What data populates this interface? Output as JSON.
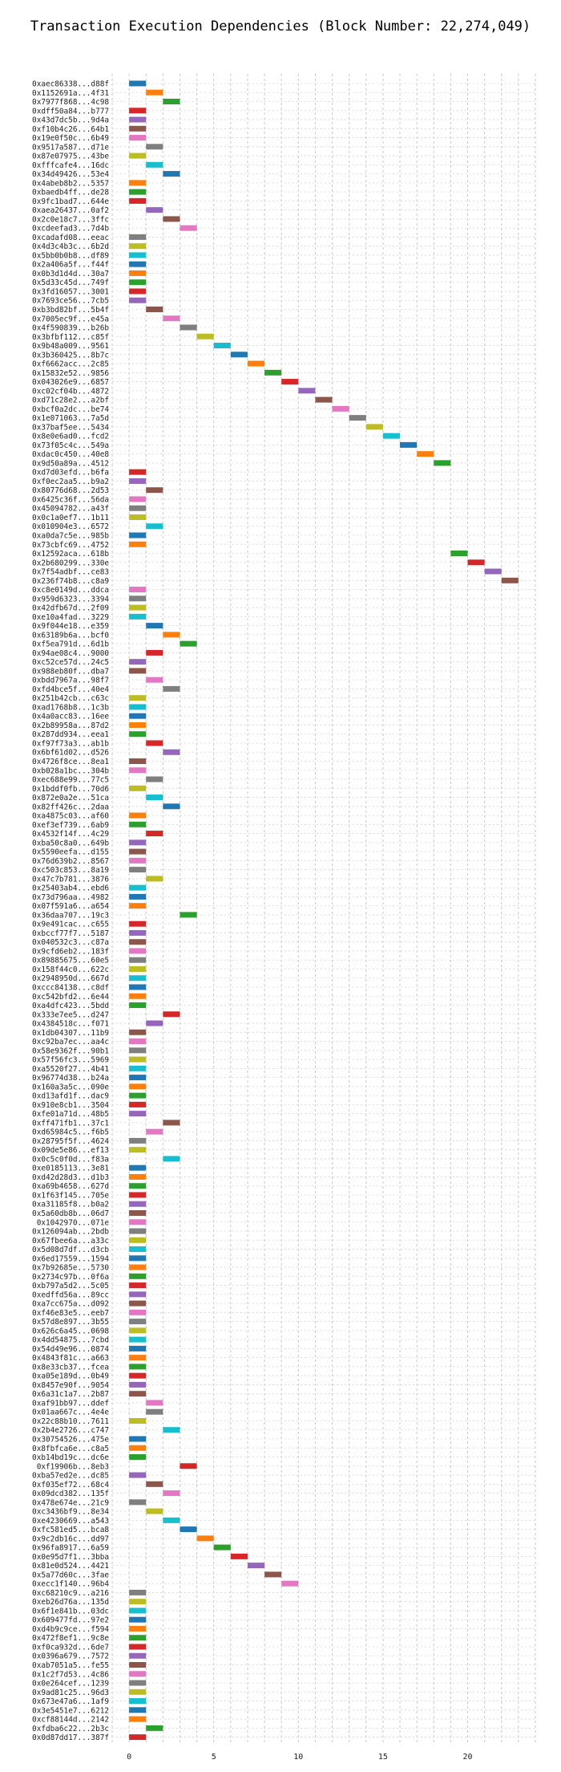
{
  "chart_data": {
    "type": "bar",
    "orientation": "horizontal-gantt",
    "title": "Transaction Execution Dependencies (Block Number: 22,274,049)",
    "xlabel": "",
    "ylabel": "",
    "xlim": [
      -1,
      24
    ],
    "xticks": [
      0,
      5,
      10,
      15,
      20
    ],
    "grid": true,
    "colors": [
      "#1f77b4",
      "#ff7f0e",
      "#2ca02c",
      "#d62728",
      "#9467bd",
      "#8c564b",
      "#e377c2",
      "#7f7f7f",
      "#bcbd22",
      "#17becf"
    ],
    "categories": [
      "0xaec86338...d88f",
      "0x1152691a...4f31",
      "0x7977f868...4c98",
      "0xdff50a84...b777",
      "0x43d7dc5b...9d4a",
      "0xf10b4c26...64b1",
      "0x19e0f50c...6b49",
      "0x9517a587...d71e",
      "0x87e07975...43be",
      "0xfffcafe4...16dc",
      "0x34d49426...53e4",
      "0x4abeb8b2...5357",
      "0xbaedb4ff...de28",
      "0x9fc1bad7...644e",
      "0xaea26437...0af2",
      "0x2c0e18c7...3ffc",
      "0xcdeefad3...7d4b",
      "0xcadafd08...eeac",
      "0x4d3c4b3c...6b2d",
      "0x5bb0b0b8...df89",
      "0x2a406a5f...f44f",
      "0x0b3d1d4d...30a7",
      "0x5d33c45d...749f",
      "0x3fd16057...3001",
      "0x7693ce56...7cb5",
      "0xb3bd82bf...5b4f",
      "0x7005ec9f...e45a",
      "0x4f590839...b26b",
      "0x3bfbf112...c85f",
      "0x9b48a009...9561",
      "0x3b360425...8b7c",
      "0xf6662acc...2c85",
      "0x15832e52...9856",
      "0x043026e9...6857",
      "0xc02cf04b...4872",
      "0xd71c28e2...a2bf",
      "0xbcf0a2dc...be74",
      "0x1e071063...7a5d",
      "0x37baf5ee...5434",
      "0x8e0e6ad0...fcd2",
      "0x73f05c4c...549a",
      "0xdac0c450...40e8",
      "0x9d50a89a...4512",
      "0xd7d03efd...b6fa",
      "0xf0ec2aa5...b9a2",
      "0x80776d68...2d53",
      "0x6425c36f...56da",
      "0x45094782...a43f",
      "0x0c1a0ef7...1b11",
      "0x010904e3...6572",
      "0xa0da7c5e...985b",
      "0x73cbfc69...4752",
      "0x12592aca...618b",
      "0x2b680299...330e",
      "0x7f54adbf...ce83",
      "0x236f74b8...c8a9",
      "0xc8e0149d...ddca",
      "0x959d6323...3394",
      "0x42dfb67d...2f09",
      "0xe10a4fad...3229",
      "0x9f044e18...e359",
      "0x63189b6a...bcf0",
      "0xf5ea791d...6d1b",
      "0x94ae08c4...9000",
      "0xc52ce57d...24c5",
      "0x988eb80f...dba7",
      "0xbdd7967a...98f7",
      "0xfd4bce5f...40e4",
      "0x251b42cb...c63c",
      "0xad1768b8...1c3b",
      "0x4a0acc83...16ee",
      "0x2b89958a...87d2",
      "0x287dd934...eea1",
      "0xf97f73a3...ab1b",
      "0x6bf61d02...d526",
      "0x4726f8ce...8ea1",
      "0xb028a1bc...304b",
      "0xec688e99...77c5",
      "0x1bddf0fb...70d6",
      "0x872e0a2e...51ca",
      "0x82ff426c...2daa",
      "0xa4875c03...af60",
      "0xef3ef739...6ab9",
      "0x4532f14f...4c29",
      "0xba50c8a0...649b",
      "0x5590eefa...d155",
      "0x76d639b2...8567",
      "0xc503c853...8a19",
      "0x47c7b781...3876",
      "0x25403ab4...ebd6",
      "0x73d796aa...4982",
      "0x07f591a6...a654",
      "0x36daa707...19c3",
      "0x9e491cac...c655",
      "0xbccf77f7...5187",
      "0x040532c3...c87a",
      "0x9cfd6eb2...183f",
      "0x89885675...60e5",
      "0x158f44c0...622c",
      "0x2948950d...667d",
      "0xccc84138...c8df",
      "0xc542bfd2...6e44",
      "0xa4dfc423...5bdd",
      "0x333e7ee5...d247",
      "0x4384518c...f071",
      "0x1db04307...11b9",
      "0xc92ba7ec...aa4c",
      "0x58e9362f...90b1",
      "0x57f56fc3...5969",
      "0xa5520f27...4b41",
      "0x96774d38...b24a",
      "0x160a3a5c...090e",
      "0xd13afd1f...dac9",
      "0x910e8cb1...3504",
      "0xfe01a71d...48b5",
      "0xff471fb1...37c1",
      "0xd65984c5...f6b5",
      "0x28795f5f...4624",
      "0x09de5e86...ef13",
      "0x0c5c0f0d...f83a",
      "0xe0185113...3e81",
      "0xd42d28d3...d1b3",
      "0xa69b4658...627d",
      "0x1f63f145...705e",
      "0xa31185f8...b0a2",
      "0x5a60db8b...06d7",
      "0x1042970...071e",
      "0x126094ab...2bdb",
      "0x67fbee6a...a33c",
      "0x5d08d7df...d3cb",
      "0x6ed17559...1594",
      "0x7b92685e...5730",
      "0x2734c97b...0f6a",
      "0xb797a5d2...5c05",
      "0xedffd56a...89cc",
      "0xa7cc675a...d092",
      "0xf46e83e5...eeb7",
      "0x57d8e897...3b55",
      "0x626c6a45...0698",
      "0x4dd54875...7cbd",
      "0x54d49e96...0874",
      "0x4843f81c...a663",
      "0x8e33cb37...fcea",
      "0xa05e189d...0b49",
      "0x8457e90f...9054",
      "0x6a31c1a7...2b87",
      "0xaf91bb97...ddef",
      "0x01aa667c...4e4e",
      "0x22c88b10...7611",
      "0x2b4e2726...c747",
      "0x30754526...475e",
      "0x8fbfca6e...c8a5",
      "0xb14bd19c...dc6e",
      "0xf19906b...8eb3",
      "0xba57ed2e...dc85",
      "0xf035ef72...68c4",
      "0x09dcd382...135f",
      "0x478e674e...21c9",
      "0xc3436bf9...8e34",
      "0xe4230669...a543",
      "0xfc581ed5...bca8",
      "0x9c2db16c...dd97",
      "0x96fa8917...6a59",
      "0x0e95d7f1...3bba",
      "0x81e0d524...4421",
      "0x5a77d60c...3fae",
      "0xecc1f140...96b4",
      "0xc68210c9...a216",
      "0xeb26d76a...135d",
      "0x6f1e841b...03dc",
      "0x609477fd...97e2",
      "0xd4b9c9ce...f594",
      "0x472f8ef1...9c8e",
      "0xf0ca932d...6de7",
      "0x0396a679...7572",
      "0xab7051a5...fe55",
      "0x1c2f7d53...4c86",
      "0x0e264cef...1239",
      "0x9ad81c25...96d3",
      "0x673e47a6...1af9",
      "0x3e5451e7...6212",
      "0xcf88144d...2142",
      "0xfdba6c22...2b3c",
      "0x0d87dd17...387f"
    ],
    "start": [
      0,
      1,
      2,
      0,
      0,
      0,
      0,
      1,
      0,
      1,
      2,
      0,
      0,
      0,
      1,
      2,
      3,
      0,
      0,
      0,
      0,
      0,
      0,
      0,
      0,
      1,
      2,
      3,
      4,
      5,
      6,
      7,
      8,
      9,
      10,
      11,
      12,
      13,
      14,
      15,
      16,
      17,
      18,
      0,
      0,
      1,
      0,
      0,
      0,
      1,
      0,
      0,
      19,
      20,
      21,
      22,
      0,
      0,
      0,
      0,
      1,
      2,
      3,
      1,
      0,
      0,
      1,
      2,
      0,
      0,
      0,
      0,
      0,
      1,
      2,
      0,
      0,
      1,
      0,
      1,
      2,
      0,
      0,
      1,
      0,
      0,
      0,
      0,
      1,
      0,
      0,
      0,
      3,
      0,
      0,
      0,
      0,
      0,
      0,
      0,
      0,
      0,
      0,
      2,
      1,
      0,
      0,
      0,
      0,
      0,
      0,
      0,
      0,
      0,
      0,
      2,
      1,
      0,
      0,
      2,
      0,
      0,
      0,
      0,
      0,
      0,
      0,
      0,
      0,
      0,
      0,
      0,
      0,
      0,
      0,
      0,
      0,
      0,
      0,
      0,
      0,
      0,
      0,
      0,
      0,
      0,
      1,
      1,
      0,
      2,
      0,
      0,
      0,
      3,
      0,
      1,
      2,
      0,
      1,
      2,
      3,
      4,
      5,
      6,
      7,
      8,
      9,
      0,
      0,
      0,
      0,
      0,
      0,
      0,
      0,
      0,
      0,
      0,
      0,
      0,
      0,
      0,
      1,
      0
    ],
    "duration": 1,
    "color_index": [
      0,
      1,
      2,
      3,
      4,
      5,
      6,
      7,
      8,
      9,
      0,
      1,
      2,
      3,
      4,
      5,
      6,
      7,
      8,
      9,
      0,
      1,
      2,
      3,
      4,
      5,
      6,
      7,
      8,
      9,
      0,
      1,
      2,
      3,
      4,
      5,
      6,
      7,
      8,
      9,
      0,
      1,
      2,
      3,
      4,
      5,
      6,
      7,
      8,
      9,
      0,
      1,
      2,
      3,
      4,
      5,
      6,
      7,
      8,
      9,
      0,
      1,
      2,
      3,
      4,
      5,
      6,
      7,
      8,
      9,
      0,
      1,
      2,
      3,
      4,
      5,
      6,
      7,
      8,
      9,
      0,
      1,
      2,
      3,
      4,
      5,
      6,
      7,
      8,
      9,
      0,
      1,
      2,
      3,
      4,
      5,
      6,
      7,
      8,
      9,
      0,
      1,
      2,
      3,
      4,
      5,
      6,
      7,
      8,
      9,
      0,
      1,
      2,
      3,
      4,
      5,
      6,
      7,
      8,
      9,
      0,
      1,
      2,
      3,
      4,
      5,
      6,
      7,
      8,
      9,
      0,
      1,
      2,
      3,
      4,
      5,
      6,
      7,
      8,
      9,
      0,
      1,
      2,
      3,
      4,
      5,
      6,
      7,
      8,
      9,
      0,
      1,
      2,
      3,
      4,
      5,
      6,
      7,
      8,
      9,
      0,
      1,
      2,
      3,
      4,
      5,
      6,
      7,
      8,
      9,
      0,
      1,
      2,
      3,
      4,
      5,
      6,
      7,
      8,
      9,
      0,
      1,
      2,
      3
    ]
  }
}
